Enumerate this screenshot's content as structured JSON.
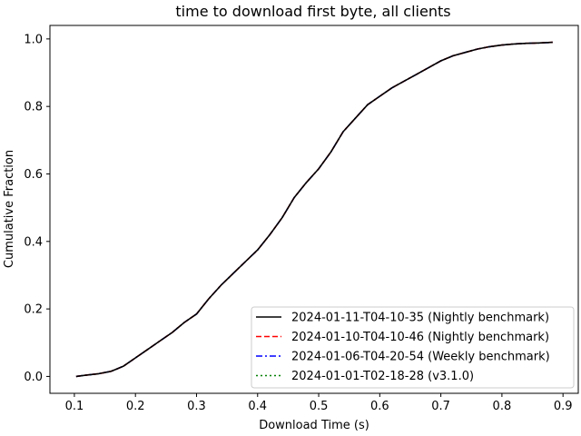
{
  "chart_data": {
    "type": "line",
    "title": "time to download first byte, all clients",
    "xlabel": "Download Time (s)",
    "ylabel": "Cumulative Fraction",
    "xlim": [
      0.06,
      0.925
    ],
    "ylim": [
      -0.05,
      1.04
    ],
    "xticks": [
      0.1,
      0.2,
      0.3,
      0.4,
      0.5,
      0.6,
      0.7,
      0.8,
      0.9
    ],
    "xtick_labels": [
      "0.1",
      "0.2",
      "0.3",
      "0.4",
      "0.5",
      "0.6",
      "0.7",
      "0.8",
      "0.9"
    ],
    "yticks": [
      0.0,
      0.2,
      0.4,
      0.6,
      0.8,
      1.0
    ],
    "ytick_labels": [
      "0.0",
      "0.2",
      "0.4",
      "0.6",
      "0.8",
      "1.0"
    ],
    "grid": false,
    "legend_position": "lower-right",
    "series": [
      {
        "name": "2024-01-11-T04-10-35 (Nightly benchmark)",
        "color": "#000000",
        "dash": "solid"
      },
      {
        "name": "2024-01-10-T04-10-46 (Nightly benchmark)",
        "color": "#ff0000",
        "dash": "dashed"
      },
      {
        "name": "2024-01-06-T04-20-54 (Weekly benchmark)",
        "color": "#0000ff",
        "dash": "dashdot"
      },
      {
        "name": "2024-01-01-T02-18-28 (v3.1.0)",
        "color": "#008000",
        "dash": "dotted"
      }
    ],
    "x": [
      0.103,
      0.12,
      0.14,
      0.16,
      0.18,
      0.2,
      0.22,
      0.24,
      0.26,
      0.28,
      0.3,
      0.32,
      0.34,
      0.36,
      0.38,
      0.4,
      0.42,
      0.44,
      0.46,
      0.48,
      0.5,
      0.52,
      0.54,
      0.56,
      0.58,
      0.6,
      0.62,
      0.64,
      0.66,
      0.68,
      0.7,
      0.72,
      0.74,
      0.76,
      0.78,
      0.8,
      0.82,
      0.84,
      0.86,
      0.883
    ],
    "y": [
      0.0,
      0.004,
      0.008,
      0.015,
      0.03,
      0.055,
      0.08,
      0.105,
      0.13,
      0.16,
      0.185,
      0.23,
      0.27,
      0.305,
      0.34,
      0.375,
      0.42,
      0.47,
      0.53,
      0.575,
      0.615,
      0.665,
      0.725,
      0.765,
      0.805,
      0.83,
      0.855,
      0.875,
      0.895,
      0.915,
      0.935,
      0.95,
      0.96,
      0.97,
      0.977,
      0.982,
      0.985,
      0.987,
      0.988,
      0.99
    ]
  }
}
